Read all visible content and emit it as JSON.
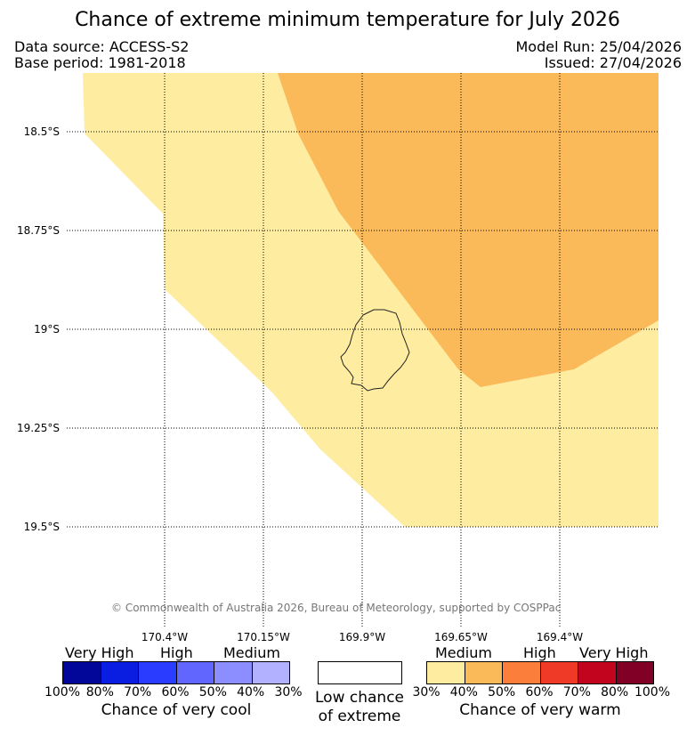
{
  "title": "Chance of extreme minimum temperature for July 2026",
  "header": {
    "data_source": "Data source: ACCESS-S2",
    "base_period": "Base period: 1981-2018",
    "model_run": "Model Run: 25/04/2026",
    "issued": "Issued: 27/04/2026"
  },
  "map": {
    "latitudes": [
      "18.5°S",
      "18.75°S",
      "19°S",
      "19.25°S",
      "19.5°S"
    ],
    "longitudes": [
      "170.4°W",
      "170.15°W",
      "169.9°W",
      "169.65°W",
      "169.4°W"
    ],
    "regions": [
      {
        "name": "medium-warm-30-40",
        "color": "#feeda0"
      },
      {
        "name": "medium-warm-40-50",
        "color": "#fbba59"
      }
    ],
    "island": "Niue outline",
    "copyright": "© Commonwealth of Australia 2026, Bureau of Meteorology, supported by COSPPac"
  },
  "legend": {
    "cool": {
      "categories": [
        "Very High",
        "High",
        "Medium"
      ],
      "colors": [
        "#02079a",
        "#0a1ee2",
        "#2a3cff",
        "#6166ff",
        "#8c8eff",
        "#b1b1ff"
      ],
      "ticks": [
        "100%",
        "80%",
        "70%",
        "60%",
        "50%",
        "40%",
        "30%"
      ],
      "caption": "Chance of very cool"
    },
    "low": {
      "color": "#ffffff",
      "caption_line1": "Low chance",
      "caption_line2": "of extreme"
    },
    "warm": {
      "categories": [
        "Medium",
        "High",
        "Very High"
      ],
      "colors": [
        "#feeda0",
        "#fbba59",
        "#fb7e3a",
        "#ee3a26",
        "#c3041f",
        "#810025"
      ],
      "ticks": [
        "30%",
        "40%",
        "50%",
        "60%",
        "70%",
        "80%",
        "100%"
      ],
      "caption": "Chance of very warm"
    }
  }
}
